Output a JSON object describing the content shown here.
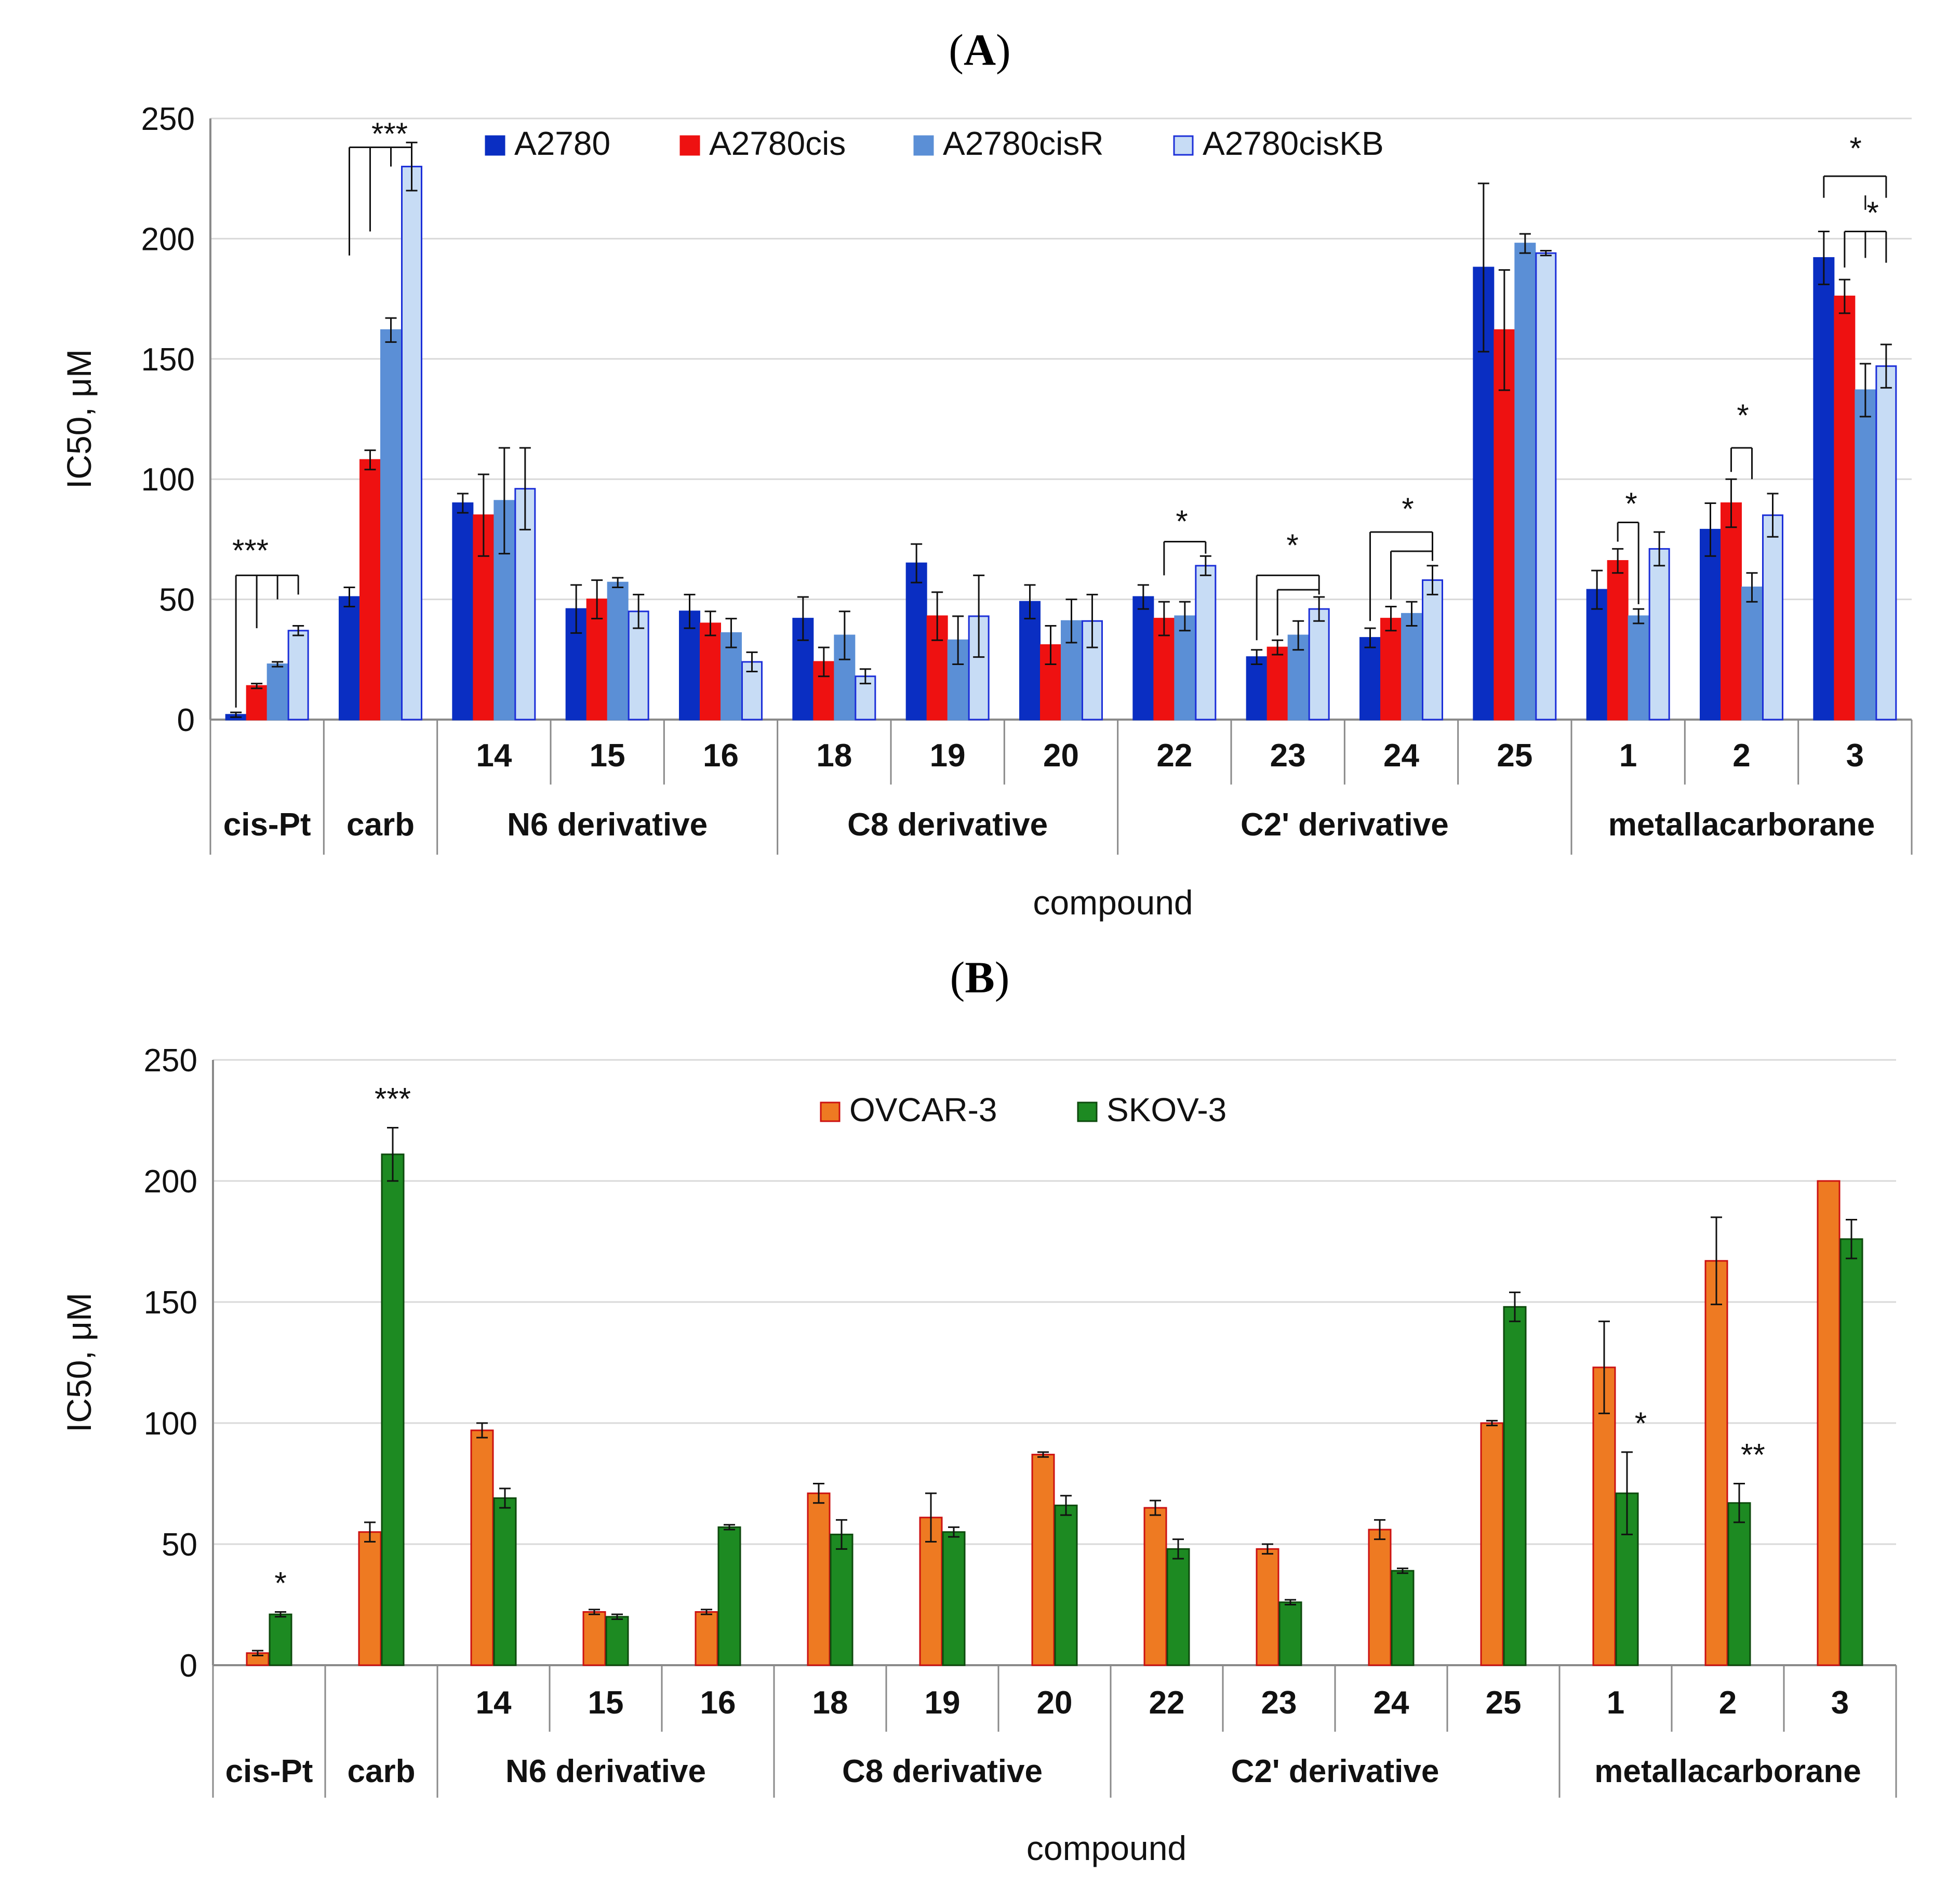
{
  "chart_data": [
    {
      "panel": "A",
      "type": "bar",
      "ylabel": "IC50, μM",
      "xlabel": "compound",
      "ylim": [
        0,
        250
      ],
      "yticks": [
        0,
        50,
        100,
        150,
        200,
        250
      ],
      "grid": true,
      "legend_position": "top-center",
      "categories": [
        "",
        "",
        "14",
        "15",
        "16",
        "18",
        "19",
        "20",
        "22",
        "23",
        "24",
        "25",
        "1",
        "2",
        "3"
      ],
      "groups": [
        {
          "label": "cis-Pt",
          "span": [
            0,
            0
          ]
        },
        {
          "label": "carb",
          "span": [
            1,
            1
          ]
        },
        {
          "label": "N6 derivative",
          "span": [
            2,
            4
          ]
        },
        {
          "label": "C8 derivative",
          "span": [
            5,
            7
          ]
        },
        {
          "label": "C2' derivative",
          "span": [
            8,
            11
          ]
        },
        {
          "label": "metallacarborane",
          "span": [
            12,
            14
          ]
        }
      ],
      "series": [
        {
          "name": "A2780",
          "color": "#0a2ec2",
          "edge": "#0a2ec2",
          "values": [
            2,
            51,
            90,
            46,
            45,
            42,
            65,
            49,
            51,
            26,
            34,
            188,
            54,
            79,
            192
          ],
          "errors": [
            1,
            4,
            4,
            10,
            7,
            9,
            8,
            7,
            5,
            3,
            4,
            35,
            8,
            11,
            11
          ]
        },
        {
          "name": "A2780cis",
          "color": "#ee1111",
          "edge": "#ee1111",
          "values": [
            14,
            108,
            85,
            50,
            40,
            24,
            43,
            31,
            42,
            30,
            42,
            162,
            66,
            90,
            176
          ],
          "errors": [
            1,
            4,
            17,
            8,
            5,
            6,
            10,
            8,
            7,
            3,
            5,
            25,
            5,
            10,
            7
          ]
        },
        {
          "name": "A2780cisR",
          "color": "#5b8fd6",
          "edge": "#5b8fd6",
          "values": [
            23,
            162,
            91,
            57,
            36,
            35,
            33,
            41,
            43,
            35,
            44,
            198,
            43,
            55,
            137
          ],
          "errors": [
            1,
            5,
            22,
            2,
            6,
            10,
            10,
            9,
            6,
            6,
            5,
            4,
            3,
            6,
            11
          ]
        },
        {
          "name": "A2780cisKB",
          "color": "#c7dcf5",
          "edge": "#1c2fd8",
          "values": [
            37,
            230,
            96,
            45,
            24,
            18,
            43,
            41,
            64,
            46,
            58,
            194,
            71,
            85,
            147
          ],
          "errors": [
            2,
            10,
            17,
            7,
            4,
            3,
            17,
            11,
            4,
            5,
            6,
            1,
            7,
            9,
            9
          ]
        }
      ],
      "annotations": [
        {
          "category": 0,
          "text": "***"
        },
        {
          "category": 1,
          "text": "***"
        },
        {
          "category": 8,
          "text": "*"
        },
        {
          "category": 9,
          "text": "*"
        },
        {
          "category": 10,
          "text": "*"
        },
        {
          "category": 12,
          "text": "*"
        },
        {
          "category": 13,
          "text": "*"
        },
        {
          "category": 14,
          "text": "*"
        },
        {
          "category": 14,
          "text": "*"
        }
      ]
    },
    {
      "panel": "B",
      "type": "bar",
      "ylabel": "IC50, μM",
      "xlabel": "compound",
      "ylim": [
        0,
        250
      ],
      "yticks": [
        0,
        50,
        100,
        150,
        200,
        250
      ],
      "grid": true,
      "legend_position": "top-center",
      "categories": [
        "",
        "",
        "14",
        "15",
        "16",
        "18",
        "19",
        "20",
        "22",
        "23",
        "24",
        "25",
        "1",
        "2",
        "3"
      ],
      "groups": [
        {
          "label": "cis-Pt",
          "span": [
            0,
            0
          ]
        },
        {
          "label": "carb",
          "span": [
            1,
            1
          ]
        },
        {
          "label": "N6 derivative",
          "span": [
            2,
            4
          ]
        },
        {
          "label": "C8 derivative",
          "span": [
            5,
            7
          ]
        },
        {
          "label": "C2' derivative",
          "span": [
            8,
            11
          ]
        },
        {
          "label": "metallacarborane",
          "span": [
            12,
            14
          ]
        }
      ],
      "series": [
        {
          "name": "OVCAR-3",
          "color": "#ee7a22",
          "edge": "#cc1111",
          "values": [
            5,
            55,
            97,
            22,
            22,
            71,
            61,
            87,
            65,
            48,
            56,
            100,
            123,
            167,
            200
          ],
          "errors": [
            1,
            4,
            3,
            1,
            1,
            4,
            10,
            1,
            3,
            2,
            4,
            1,
            19,
            18,
            0
          ]
        },
        {
          "name": "SKOV-3",
          "color": "#1d8a22",
          "edge": "#0d4a0d",
          "values": [
            21,
            211,
            69,
            20,
            57,
            54,
            55,
            66,
            48,
            26,
            39,
            148,
            71,
            67,
            176
          ],
          "errors": [
            1,
            11,
            4,
            1,
            1,
            6,
            2,
            4,
            4,
            1,
            1,
            6,
            17,
            8,
            8
          ]
        }
      ],
      "annotations": [
        {
          "category": 0,
          "series": 1,
          "text": "*"
        },
        {
          "category": 1,
          "series": 1,
          "text": "***"
        },
        {
          "category": 12,
          "series": 1,
          "text": "*"
        },
        {
          "category": 13,
          "series": 1,
          "text": "**"
        }
      ]
    }
  ],
  "panels": {
    "a": {
      "label": "A"
    },
    "b": {
      "label": "B"
    }
  }
}
